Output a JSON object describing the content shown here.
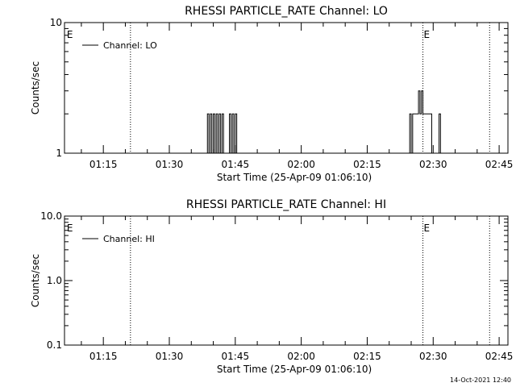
{
  "colors": {
    "background": "#ffffff",
    "foreground": "#000000"
  },
  "footer": {
    "timestamp": "14-Oct-2021 12:40"
  },
  "chart_data": [
    {
      "type": "line",
      "title": "RHESSI PARTICLE_RATE Channel: LO",
      "ylabel": "Counts/sec",
      "xlabel": "Start Time (25-Apr-09 01:06:10)",
      "yscale": "log",
      "ylim": [
        1,
        10
      ],
      "ytick_labels": [
        {
          "value": 10,
          "label": "10"
        },
        {
          "value": 1,
          "label": "1"
        }
      ],
      "xlim": [
        "01:06:10",
        "02:47:00"
      ],
      "xtick_labels": [
        "01:15",
        "01:30",
        "01:45",
        "02:00",
        "02:15",
        "02:30",
        "02:45"
      ],
      "legend": {
        "entries": [
          "Channel: LO"
        ],
        "placement": "top-left"
      },
      "markers": [
        {
          "time": "01:06:30",
          "label": "E"
        },
        {
          "time": "02:27:40",
          "label": "E"
        }
      ],
      "dotted_lines": [
        "01:21:10",
        "02:27:40",
        "02:42:50"
      ],
      "series": [
        {
          "name": "Channel: LO",
          "points": [
            [
              "01:38:30",
              1
            ],
            [
              "01:38:50",
              2
            ],
            [
              "01:39:10",
              1
            ],
            [
              "01:39:30",
              2
            ],
            [
              "01:39:50",
              1
            ],
            [
              "01:40:10",
              2
            ],
            [
              "01:40:30",
              1
            ],
            [
              "01:40:50",
              2
            ],
            [
              "01:41:10",
              1
            ],
            [
              "01:41:30",
              2
            ],
            [
              "01:41:50",
              1
            ],
            [
              "01:42:10",
              2
            ],
            [
              "01:42:30",
              1
            ],
            [
              "01:43:30",
              1
            ],
            [
              "01:43:50",
              2
            ],
            [
              "01:44:10",
              1
            ],
            [
              "01:44:30",
              2
            ],
            [
              "01:44:50",
              1
            ],
            [
              "01:45:10",
              2
            ],
            [
              "01:45:30",
              1
            ],
            [
              "02:24:30",
              1
            ],
            [
              "02:24:50",
              2
            ],
            [
              "02:25:10",
              1
            ],
            [
              "02:25:30",
              2
            ],
            [
              "02:25:50",
              2
            ],
            [
              "02:26:10",
              2
            ],
            [
              "02:26:30",
              2
            ],
            [
              "02:26:50",
              3
            ],
            [
              "02:27:10",
              2
            ],
            [
              "02:27:30",
              3
            ],
            [
              "02:27:50",
              2
            ],
            [
              "02:28:10",
              2
            ],
            [
              "02:28:30",
              2
            ],
            [
              "02:28:50",
              2
            ],
            [
              "02:29:10",
              2
            ],
            [
              "02:29:30",
              2
            ],
            [
              "02:29:50",
              1
            ],
            [
              "02:31:10",
              1
            ],
            [
              "02:31:30",
              2
            ],
            [
              "02:31:50",
              1
            ]
          ]
        }
      ]
    },
    {
      "type": "line",
      "title": "RHESSI PARTICLE_RATE Channel: HI",
      "ylabel": "Counts/sec",
      "xlabel": "Start Time (25-Apr-09 01:06:10)",
      "yscale": "log",
      "ylim": [
        0.1,
        10
      ],
      "ytick_labels": [
        {
          "value": 10,
          "label": "10.0"
        },
        {
          "value": 1,
          "label": "1.0"
        },
        {
          "value": 0.1,
          "label": "0.1"
        }
      ],
      "xlim": [
        "01:06:10",
        "02:47:00"
      ],
      "xtick_labels": [
        "01:15",
        "01:30",
        "01:45",
        "02:00",
        "02:15",
        "02:30",
        "02:45"
      ],
      "legend": {
        "entries": [
          "Channel: HI"
        ],
        "placement": "top-left"
      },
      "markers": [
        {
          "time": "01:06:30",
          "label": "E"
        },
        {
          "time": "02:27:40",
          "label": "E"
        }
      ],
      "dotted_lines": [
        "01:21:10",
        "02:27:40",
        "02:42:50"
      ],
      "series": [
        {
          "name": "Channel: HI",
          "points": []
        }
      ]
    }
  ]
}
